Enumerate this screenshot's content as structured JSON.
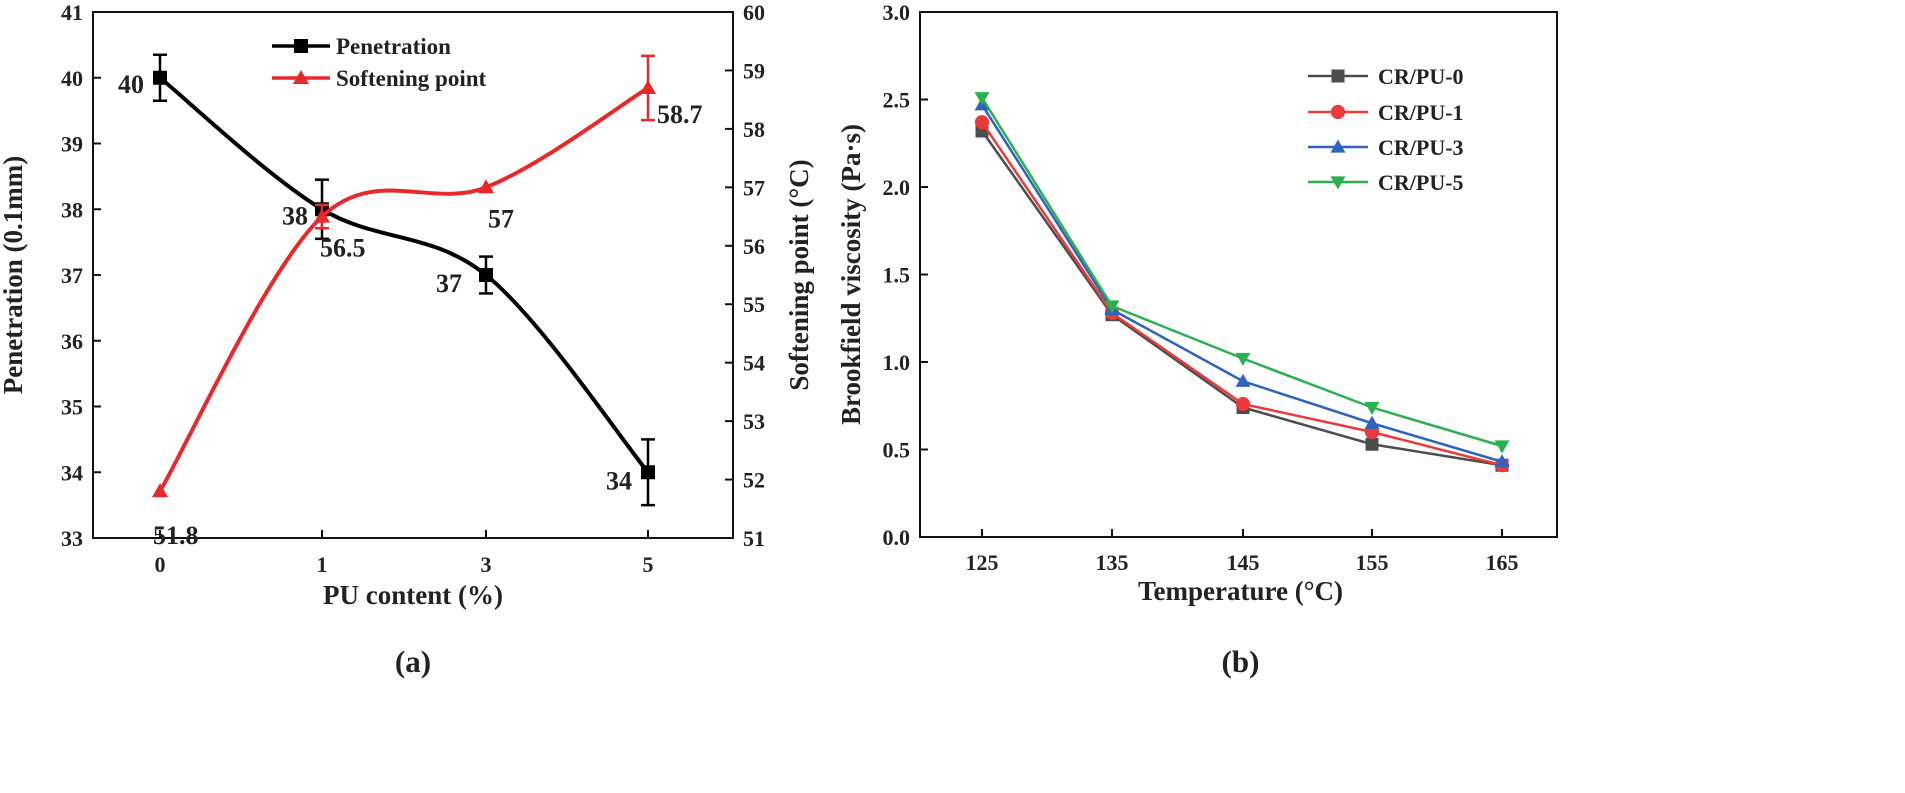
{
  "chart_data": [
    {
      "type": "line",
      "panel_label": "(a)",
      "title": "",
      "xlabel": "PU content (%)",
      "ylabel_left": "Penetration (0.1mm)",
      "ylabel_right": "Softening point (°C)",
      "categories": [
        "0",
        "1",
        "3",
        "5"
      ],
      "ylim_left": [
        33,
        41
      ],
      "yticks_left": [
        33,
        34,
        35,
        36,
        37,
        38,
        39,
        40,
        41
      ],
      "ylim_right": [
        51,
        60
      ],
      "yticks_right": [
        51,
        52,
        53,
        54,
        55,
        56,
        57,
        58,
        59,
        60
      ],
      "legend_position": "top-center",
      "series": [
        {
          "name": "Penetration",
          "axis": "left",
          "marker": "square",
          "color": "#000000",
          "values": [
            40,
            38,
            37,
            34
          ],
          "errors": [
            0.35,
            0.45,
            0.28,
            0.5
          ],
          "value_labels": [
            "40",
            "38",
            "37",
            "34"
          ]
        },
        {
          "name": "Softening point",
          "axis": "right",
          "marker": "triangle-up",
          "color": "#e8282b",
          "values": [
            51.8,
            56.5,
            57,
            58.7
          ],
          "errors": [
            0,
            0.2,
            0,
            0.55
          ],
          "value_labels": [
            "51.8",
            "56.5",
            "57",
            "58.7"
          ]
        }
      ]
    },
    {
      "type": "line",
      "panel_label": "(b)",
      "title": "",
      "xlabel": "Temperature (°C)",
      "ylabel": "Brookfield viscosity (Pa·s)",
      "categories": [
        "125",
        "135",
        "145",
        "155",
        "165"
      ],
      "ylim": [
        0,
        3
      ],
      "yticks": [
        "0.0",
        "0.5",
        "1.0",
        "1.5",
        "2.0",
        "2.5",
        "3.0"
      ],
      "legend_position": "top-right",
      "series": [
        {
          "name": "CR/PU-0",
          "marker": "square",
          "color": "#4d4d4d",
          "values": [
            2.32,
            1.27,
            0.74,
            0.53,
            0.41
          ]
        },
        {
          "name": "CR/PU-1",
          "marker": "circle",
          "color": "#ea3a3a",
          "values": [
            2.37,
            1.28,
            0.76,
            0.6,
            0.41
          ]
        },
        {
          "name": "CR/PU-3",
          "marker": "triangle-up",
          "color": "#2f63c0",
          "values": [
            2.47,
            1.3,
            0.89,
            0.65,
            0.43
          ]
        },
        {
          "name": "CR/PU-5",
          "marker": "triangle-down",
          "color": "#2bb04f",
          "values": [
            2.51,
            1.32,
            1.02,
            0.74,
            0.52
          ]
        }
      ]
    }
  ]
}
